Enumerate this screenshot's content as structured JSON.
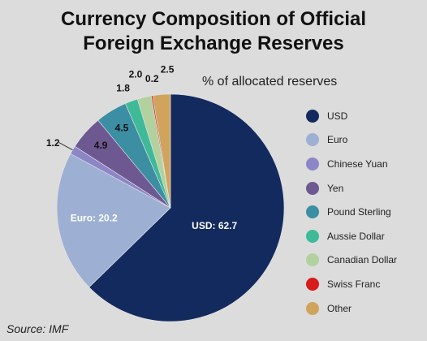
{
  "chart_data": {
    "type": "pie",
    "title_line1": "Currency Composition of Official",
    "title_line2": "Foreign Exchange Reserves",
    "subtitle": "% of allocated reserves",
    "source": "Source: IMF",
    "legend_position": "right",
    "slices": [
      {
        "name": "USD",
        "value": 62.7,
        "color": "#132a5e",
        "label": "USD: 62.7"
      },
      {
        "name": "Euro",
        "value": 20.2,
        "color": "#9db0d4",
        "label": "Euro: 20.2"
      },
      {
        "name": "Chinese Yuan",
        "value": 1.2,
        "color": "#8c86c6",
        "label": "1.2"
      },
      {
        "name": "Yen",
        "value": 4.9,
        "color": "#6e5891",
        "label": "4.9"
      },
      {
        "name": "Pound Sterling",
        "value": 4.5,
        "color": "#3c8ea3",
        "label": "4.5"
      },
      {
        "name": "Aussie Dollar",
        "value": 1.8,
        "color": "#3fba98",
        "label": "1.8"
      },
      {
        "name": "Canadian Dollar",
        "value": 2.0,
        "color": "#b2d19f",
        "label": "2.0"
      },
      {
        "name": "Swiss Franc",
        "value": 0.2,
        "color": "#d81b1b",
        "label": "0.2"
      },
      {
        "name": "Other",
        "value": 2.5,
        "color": "#d0a45d",
        "label": "2.5"
      }
    ]
  }
}
